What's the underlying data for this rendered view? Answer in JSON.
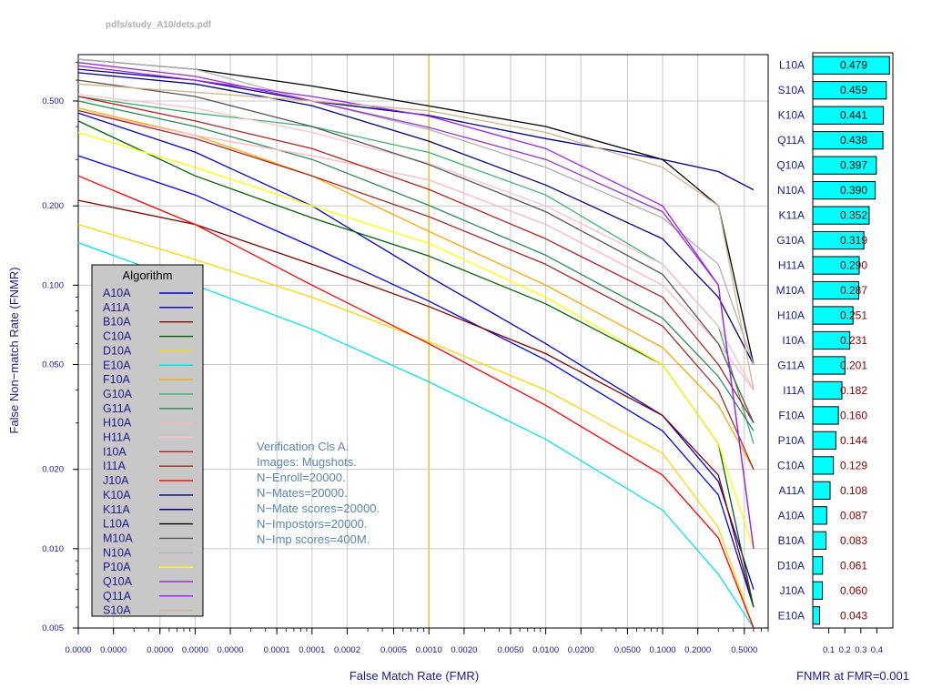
{
  "file_path": "pdfs/study_A10/dets.pdf",
  "annotation": [
    "Verification Cls A.",
    "Images: Mugshots.",
    "N−Enroll=20000.",
    "N−Mates=20000.",
    "N−Mate scores=20000.",
    "N−Impostors=20000.",
    "N−Imp scores=400M."
  ],
  "colors": {
    "axis_text": "#1a1a8c",
    "grid": "#c8c8c8",
    "reference_line": "#e6c34c",
    "bar_fill": "#00ffff",
    "value_dark": "#000000",
    "value_red": "#8b0000",
    "legend_bg": "#c8c8c8"
  },
  "chart_data": [
    {
      "type": "line",
      "xlabel": "False Match Rate (FMR)",
      "ylabel": "False Non−match Rate (FNMR)",
      "x_scale": "log",
      "y_scale": "log",
      "xlim": [
        1e-06,
        0.8
      ],
      "ylim": [
        0.005,
        0.75
      ],
      "grid": true,
      "x_ticks": [
        {
          "v": 1e-06,
          "label": "0.0000"
        },
        {
          "v": 2e-06,
          "label": "0.0000"
        },
        {
          "v": 5e-06,
          "label": "0.0000"
        },
        {
          "v": 1e-05,
          "label": "0.0000"
        },
        {
          "v": 2e-05,
          "label": "0.0000"
        },
        {
          "v": 5e-05,
          "label": "0.0001"
        },
        {
          "v": 0.0001,
          "label": "0.0001"
        },
        {
          "v": 0.0002,
          "label": "0.0002"
        },
        {
          "v": 0.0005,
          "label": "0.0005"
        },
        {
          "v": 0.001,
          "label": "0.0010"
        },
        {
          "v": 0.002,
          "label": "0.0020"
        },
        {
          "v": 0.005,
          "label": "0.0050"
        },
        {
          "v": 0.01,
          "label": "0.0100"
        },
        {
          "v": 0.02,
          "label": "0.0200"
        },
        {
          "v": 0.05,
          "label": "0.0500"
        },
        {
          "v": 0.1,
          "label": "0.1000"
        },
        {
          "v": 0.2,
          "label": "0.2000"
        },
        {
          "v": 0.5,
          "label": "0.5000"
        }
      ],
      "y_ticks": [
        {
          "v": 0.005,
          "label": "0.005"
        },
        {
          "v": 0.01,
          "label": "0.010"
        },
        {
          "v": 0.02,
          "label": "0.020"
        },
        {
          "v": 0.05,
          "label": "0.050"
        },
        {
          "v": 0.1,
          "label": "0.100"
        },
        {
          "v": 0.2,
          "label": "0.200"
        },
        {
          "v": 0.5,
          "label": "0.500"
        }
      ],
      "reference_fmr": 0.001,
      "legend": {
        "title": "Algorithm",
        "placement": "bottom-left"
      },
      "x": [
        1e-06,
        1e-05,
        0.0001,
        0.001,
        0.01,
        0.1,
        0.3,
        0.6
      ],
      "series": [
        {
          "name": "A10A",
          "color": "#0000ff",
          "values": [
            0.31,
            0.22,
            0.14,
            0.087,
            0.052,
            0.028,
            0.016,
            0.006
          ]
        },
        {
          "name": "A11A",
          "color": "#0000cc",
          "values": [
            0.45,
            0.32,
            0.2,
            0.108,
            0.06,
            0.032,
            0.018,
            0.007
          ]
        },
        {
          "name": "B10A",
          "color": "#800000",
          "values": [
            0.21,
            0.17,
            0.12,
            0.083,
            0.055,
            0.032,
            0.019,
            0.006
          ]
        },
        {
          "name": "C10A",
          "color": "#006400",
          "values": [
            0.42,
            0.26,
            0.18,
            0.129,
            0.085,
            0.05,
            0.025,
            0.006
          ]
        },
        {
          "name": "D10A",
          "color": "#ffd700",
          "values": [
            0.17,
            0.125,
            0.09,
            0.061,
            0.04,
            0.023,
            0.012,
            0.005
          ]
        },
        {
          "name": "E10A",
          "color": "#00e5ee",
          "values": [
            0.145,
            0.1,
            0.068,
            0.043,
            0.026,
            0.014,
            0.008,
            0.004
          ]
        },
        {
          "name": "F10A",
          "color": "#ffa500",
          "values": [
            0.47,
            0.37,
            0.26,
            0.16,
            0.1,
            0.058,
            0.035,
            0.02
          ]
        },
        {
          "name": "G10A",
          "color": "#3cb371",
          "values": [
            0.52,
            0.45,
            0.4,
            0.319,
            0.22,
            0.12,
            0.07,
            0.025
          ]
        },
        {
          "name": "G11A",
          "color": "#2e8b57",
          "values": [
            0.5,
            0.4,
            0.3,
            0.201,
            0.13,
            0.075,
            0.045,
            0.028
          ]
        },
        {
          "name": "H10A",
          "color": "#ffb6c1",
          "values": [
            0.46,
            0.37,
            0.31,
            0.251,
            0.17,
            0.1,
            0.06,
            0.04
          ]
        },
        {
          "name": "H11A",
          "color": "#ffc0cb",
          "values": [
            0.53,
            0.47,
            0.38,
            0.29,
            0.2,
            0.12,
            0.07,
            0.04
          ]
        },
        {
          "name": "I10A",
          "color": "#b22222",
          "values": [
            0.52,
            0.42,
            0.33,
            0.231,
            0.15,
            0.09,
            0.05,
            0.03
          ]
        },
        {
          "name": "I11A",
          "color": "#a52a2a",
          "values": [
            0.46,
            0.36,
            0.26,
            0.182,
            0.12,
            0.07,
            0.04,
            0.02
          ]
        },
        {
          "name": "J10A",
          "color": "#ff0000",
          "values": [
            0.26,
            0.17,
            0.1,
            0.06,
            0.035,
            0.019,
            0.011,
            0.005
          ]
        },
        {
          "name": "K10A",
          "color": "#00008b",
          "values": [
            0.66,
            0.6,
            0.5,
            0.441,
            0.36,
            0.3,
            0.27,
            0.23
          ]
        },
        {
          "name": "K11A",
          "color": "#000080",
          "values": [
            0.64,
            0.58,
            0.48,
            0.352,
            0.24,
            0.15,
            0.09,
            0.05
          ]
        },
        {
          "name": "L10A",
          "color": "#000000",
          "values": [
            0.72,
            0.66,
            0.57,
            0.479,
            0.4,
            0.3,
            0.2,
            0.05
          ]
        },
        {
          "name": "M10A",
          "color": "#555555",
          "values": [
            0.6,
            0.52,
            0.4,
            0.287,
            0.19,
            0.11,
            0.06,
            0.03
          ]
        },
        {
          "name": "N10A",
          "color": "#b0b0b0",
          "values": [
            0.72,
            0.66,
            0.5,
            0.39,
            0.28,
            0.18,
            0.12,
            0.05
          ]
        },
        {
          "name": "P10A",
          "color": "#ffff00",
          "values": [
            0.38,
            0.28,
            0.2,
            0.144,
            0.09,
            0.05,
            0.025,
            0.01
          ]
        },
        {
          "name": "Q10A",
          "color": "#9932cc",
          "values": [
            0.7,
            0.62,
            0.5,
            0.397,
            0.3,
            0.19,
            0.1,
            0.01
          ]
        },
        {
          "name": "Q11A",
          "color": "#a020f0",
          "values": [
            0.68,
            0.6,
            0.52,
            0.438,
            0.33,
            0.2,
            0.1,
            0.01
          ]
        },
        {
          "name": "S10A",
          "color": "#d2b48c",
          "values": [
            0.58,
            0.54,
            0.5,
            0.459,
            0.38,
            0.28,
            0.2,
            0.04
          ]
        }
      ]
    },
    {
      "type": "bar",
      "orientation": "horizontal",
      "xlabel": "FNMR at FMR=0.001",
      "xlim": [
        0,
        0.5
      ],
      "x_ticks": [
        {
          "v": 0.1,
          "label": "0.1"
        },
        {
          "v": 0.2,
          "label": "0.2"
        },
        {
          "v": 0.3,
          "label": "0.3"
        },
        {
          "v": 0.4,
          "label": "0.4"
        }
      ],
      "categories": [
        "L10A",
        "S10A",
        "K10A",
        "Q11A",
        "Q10A",
        "N10A",
        "K11A",
        "G10A",
        "H11A",
        "M10A",
        "H10A",
        "I10A",
        "G11A",
        "I11A",
        "F10A",
        "P10A",
        "C10A",
        "A11A",
        "A10A",
        "B10A",
        "D10A",
        "J10A",
        "E10A"
      ],
      "values": [
        0.479,
        0.459,
        0.441,
        0.438,
        0.397,
        0.39,
        0.352,
        0.319,
        0.29,
        0.287,
        0.251,
        0.231,
        0.201,
        0.182,
        0.16,
        0.144,
        0.129,
        0.108,
        0.087,
        0.083,
        0.061,
        0.06,
        0.043
      ],
      "value_labels": [
        "0.479",
        "0.459",
        "0.441",
        "0.438",
        "0.397",
        "0.390",
        "0.352",
        "0.319",
        "0.290",
        "0.287",
        "0.251",
        "0.231",
        "0.201",
        "0.182",
        "0.160",
        "0.144",
        "0.129",
        "0.108",
        "0.087",
        "0.083",
        "0.061",
        "0.060",
        "0.043"
      ]
    }
  ]
}
